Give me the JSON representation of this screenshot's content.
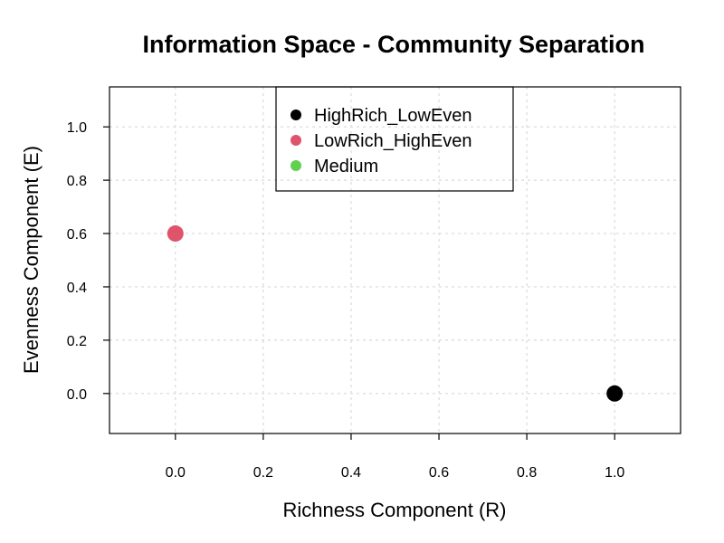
{
  "chart_data": {
    "type": "scatter",
    "title": "Information Space - Community Separation",
    "xlabel": "Richness Component (R)",
    "ylabel": "Evenness Component (E)",
    "xlim": [
      -0.15,
      1.15
    ],
    "ylim": [
      -0.15,
      1.15
    ],
    "xticks": [
      0.0,
      0.2,
      0.4,
      0.6,
      0.8,
      1.0
    ],
    "yticks": [
      0.0,
      0.2,
      0.4,
      0.6,
      0.8,
      1.0
    ],
    "xtick_labels": [
      "0.0",
      "0.2",
      "0.4",
      "0.6",
      "0.8",
      "1.0"
    ],
    "ytick_labels": [
      "0.0",
      "0.2",
      "0.4",
      "0.6",
      "0.8",
      "1.0"
    ],
    "grid": true,
    "legend_position": "top-center",
    "series": [
      {
        "name": "HighRich_LowEven",
        "color": "#000000",
        "points": [
          {
            "x": 1.0,
            "y": 0.0
          }
        ]
      },
      {
        "name": "LowRich_HighEven",
        "color": "#DF536B",
        "points": [
          {
            "x": 0.0,
            "y": 0.6
          }
        ]
      },
      {
        "name": "Medium",
        "color": "#61D04F",
        "points": []
      }
    ]
  }
}
